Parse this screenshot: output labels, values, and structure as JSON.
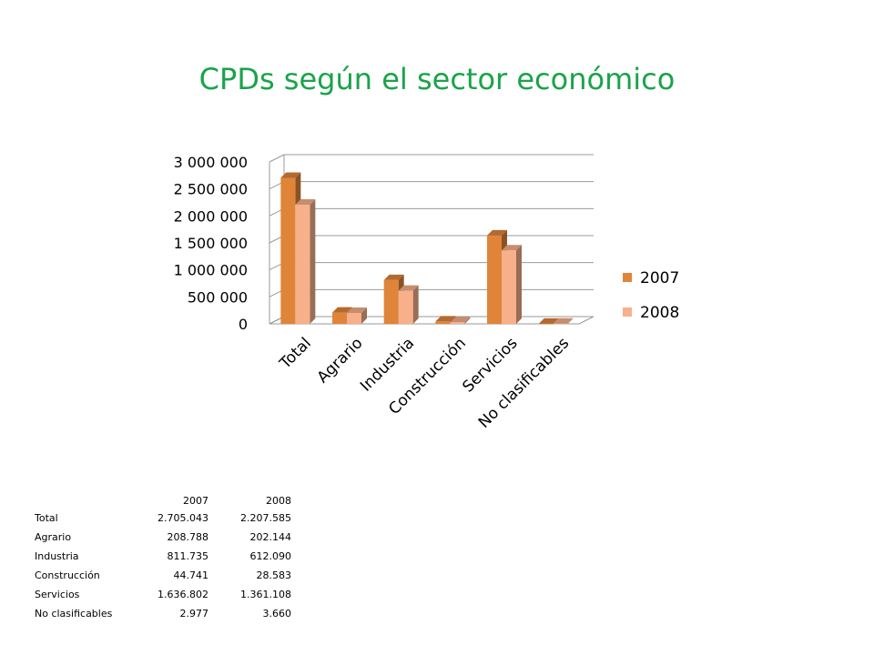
{
  "title": "CPDs según el sector económico",
  "chart_data": {
    "type": "bar",
    "categories": [
      "Total",
      "Agrario",
      "Industria",
      "Construcción",
      "Servicios",
      "No clasificables"
    ],
    "series": [
      {
        "name": "2007",
        "values": [
          2705043,
          208788,
          811735,
          44741,
          1636802,
          2977
        ],
        "color": "#e0843a"
      },
      {
        "name": "2008",
        "values": [
          2207585,
          202144,
          612090,
          28583,
          1361108,
          3660
        ],
        "color": "#f7b08a"
      }
    ],
    "ylim": [
      0,
      3000000
    ],
    "yticks": [
      "0",
      "500 000",
      "1 000 000",
      "1 500 000",
      "2 000 000",
      "2 500 000",
      "3 000 000"
    ],
    "grid": true,
    "legend": "right",
    "style": "3d-clustered-column"
  },
  "table": {
    "headers": [
      "",
      "2007",
      "2008"
    ],
    "rows": [
      {
        "label": "Total",
        "v2007": "2.705.043",
        "v2008": "2.207.585"
      },
      {
        "label": "Agrario",
        "v2007": "208.788",
        "v2008": "202.144"
      },
      {
        "label": "Industria",
        "v2007": "811.735",
        "v2008": "612.090"
      },
      {
        "label": "Construcción",
        "v2007": "44.741",
        "v2008": "28.583"
      },
      {
        "label": "Servicios",
        "v2007": "1.636.802",
        "v2008": "1.361.108"
      },
      {
        "label": "No clasificables",
        "v2007": "2.977",
        "v2008": "3.660"
      }
    ]
  }
}
